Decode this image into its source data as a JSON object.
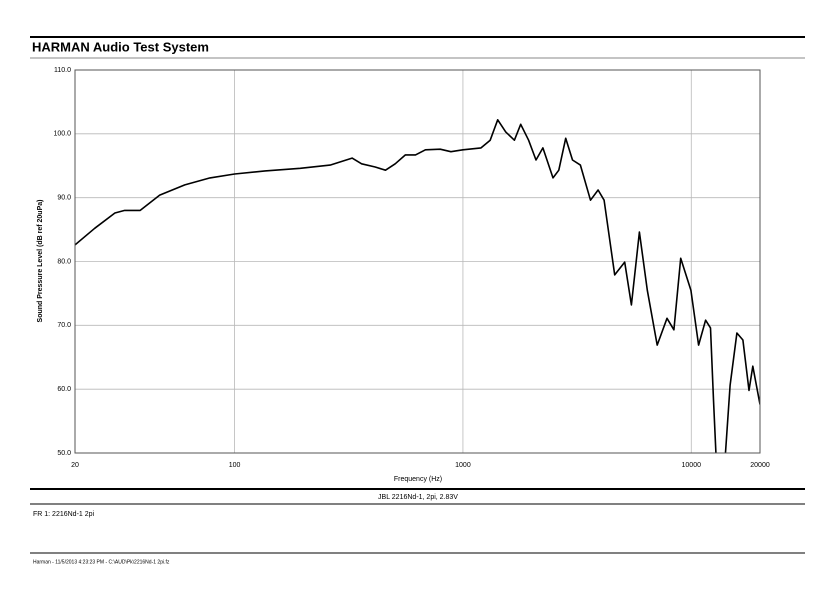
{
  "window": {
    "title": "HARMAN Audio Test System",
    "status": "Harman - 11/5/2013 4:23:23 PM - C:\\AUD\\Pk\\2216Nd-1 2pi.fz"
  },
  "chart_data": {
    "type": "line",
    "subtitle": "JBL 2216Nd-1, 2pi, 2.83V",
    "x_label": "Frequency (Hz)",
    "y_label": "Sound Pressure Level (dB ref 20uPa)",
    "log_x": true,
    "grid": true,
    "xlim": [
      20,
      20000
    ],
    "xticks": [
      20,
      100,
      1000,
      10000,
      20000
    ],
    "ylim": [
      50,
      110
    ],
    "yticks": [
      {
        "value": 50,
        "label": "50.0"
      },
      {
        "value": 60,
        "label": "60.0"
      },
      {
        "value": 70,
        "label": "70.0"
      },
      {
        "value": 80,
        "label": "80.0"
      },
      {
        "value": 90,
        "label": "90.0"
      },
      {
        "value": 100,
        "label": "100.0"
      },
      {
        "value": 110,
        "label": "110.0"
      }
    ],
    "x": [
      20,
      24.4,
      29.9,
      33,
      38.6,
      47,
      60.5,
      78,
      100,
      136,
      194,
      262,
      327,
      360,
      413,
      458,
      505,
      560,
      620,
      685,
      795,
      886,
      1000,
      1200,
      1316,
      1420,
      1540,
      1680,
      1790,
      1940,
      2090,
      2240,
      2480,
      2630,
      2820,
      3020,
      3270,
      3620,
      3910,
      4150,
      4620,
      5110,
      5470,
      5930,
      6420,
      7090,
      7830,
      8390,
      8990,
      9960,
      10770,
      11550,
      12140,
      12510,
      12900,
      14000,
      14800,
      15850,
      16840,
      17900,
      18600,
      20000
    ],
    "series": [
      {
        "name": "FR 1: 2216Nd-1 2pi",
        "color": "#000000",
        "values": [
          82.6,
          85.2,
          87.6,
          88,
          88,
          90.4,
          92,
          93.1,
          93.7,
          94.2,
          94.6,
          95.1,
          96.2,
          95.3,
          94.8,
          94.3,
          95.3,
          96.7,
          96.7,
          97.5,
          97.6,
          97.2,
          97.5,
          97.8,
          99,
          102.2,
          100.3,
          99,
          101.5,
          99,
          95.9,
          97.8,
          93.1,
          94.3,
          99.3,
          95.9,
          95.1,
          89.6,
          91.2,
          89.6,
          77.9,
          79.9,
          73.2,
          84.6,
          75.5,
          66.9,
          71.1,
          69.3,
          80.5,
          75.5,
          66.9,
          70.8,
          69.6,
          58.3,
          48,
          48,
          60.6,
          68.8,
          67.7,
          59.8,
          63.6,
          57.6
        ]
      }
    ]
  }
}
